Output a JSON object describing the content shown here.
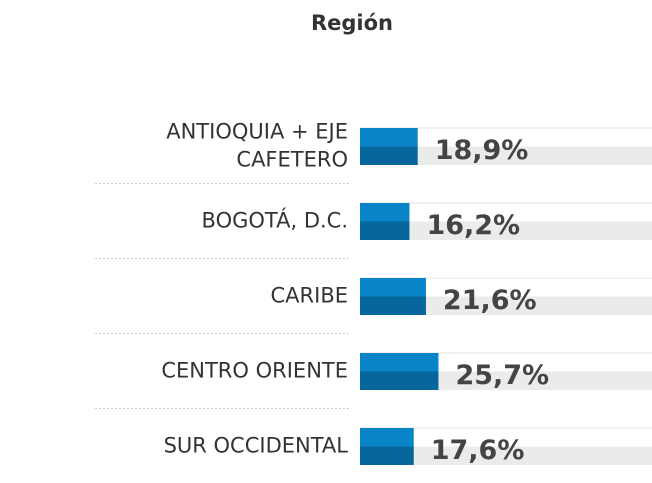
{
  "chart_data": {
    "type": "hbar",
    "title": "Región",
    "categories": [
      "ANTIOQUIA + EJE CAFETERO",
      "BOGOTÁ, D.C.",
      "CARIBE",
      "CENTRO ORIENTE",
      "SUR OCCIDENTAL"
    ],
    "values": [
      18.9,
      16.2,
      21.6,
      25.7,
      17.6
    ],
    "value_labels": [
      "18,9%",
      "16,2%",
      "21,6%",
      "25,7%",
      "17,6%"
    ],
    "color": "#0a84c8",
    "xlim": [
      0,
      95
    ]
  }
}
